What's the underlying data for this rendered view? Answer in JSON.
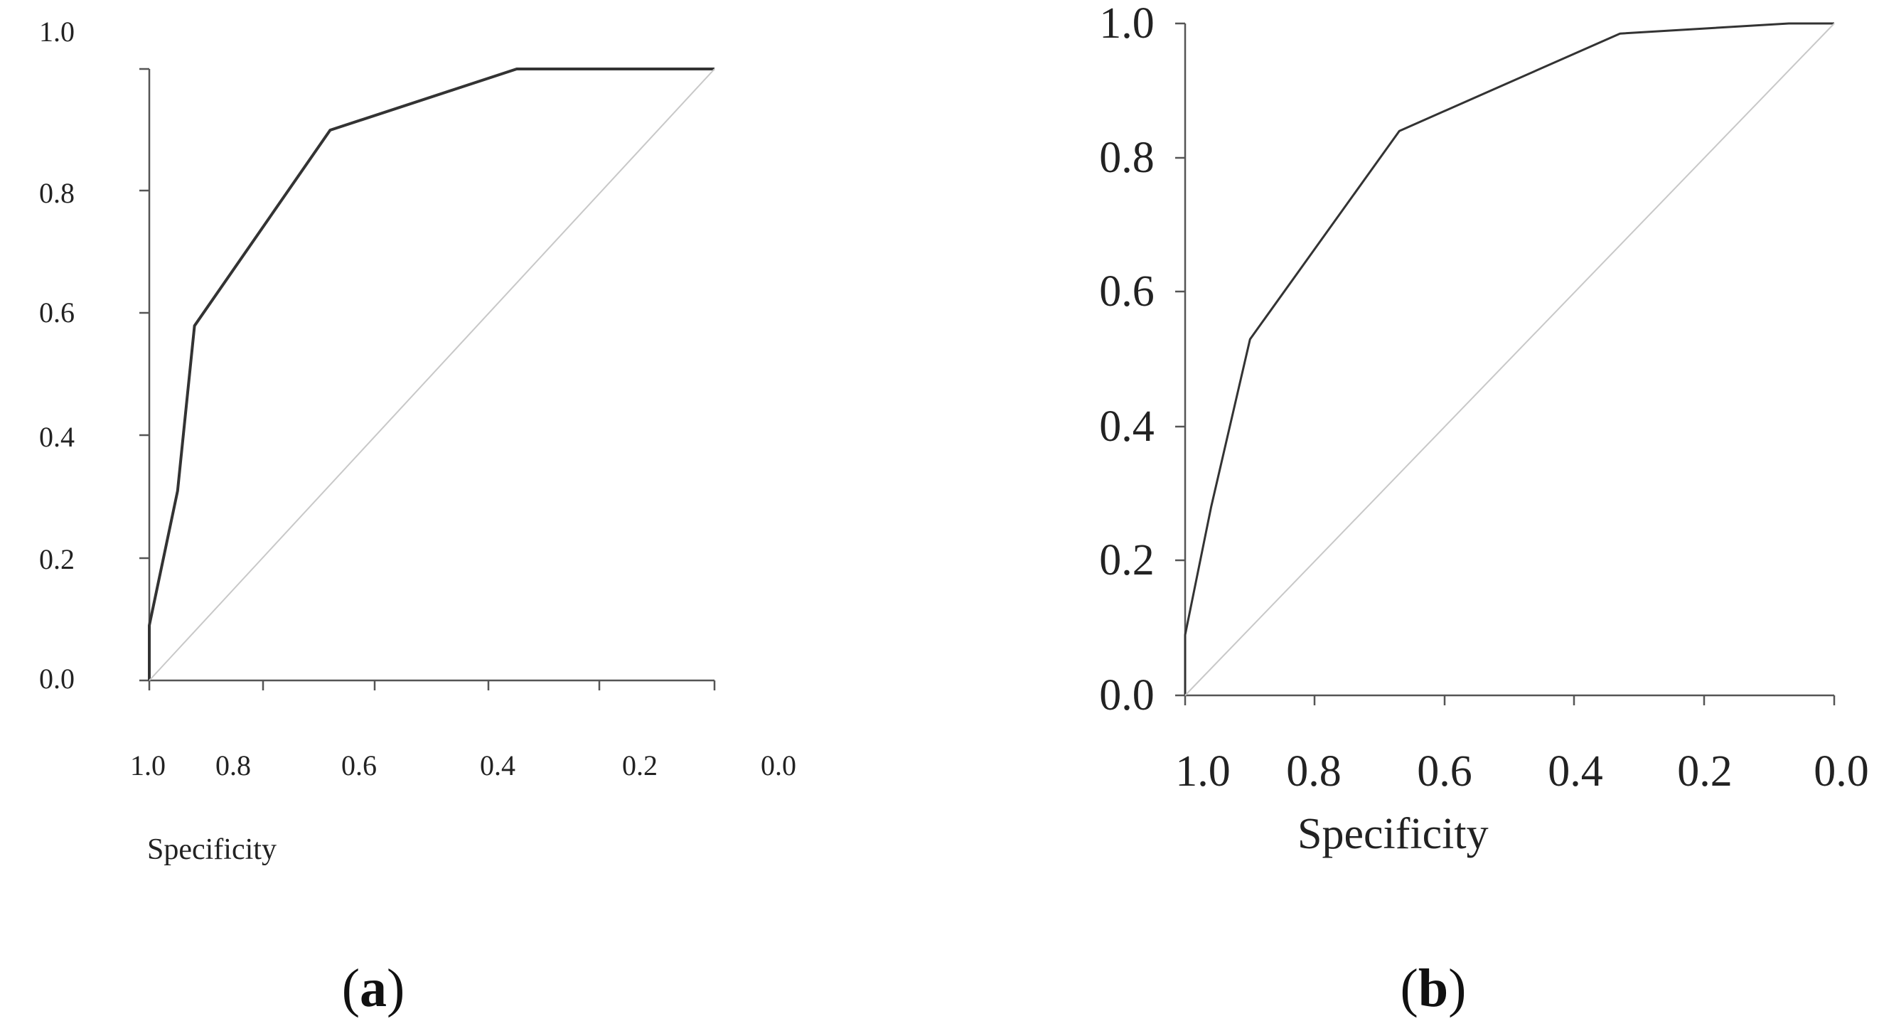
{
  "chart_data": [
    {
      "type": "line",
      "caption_letter": "a",
      "xlabel": "Specificity",
      "ylabel": "",
      "x_reversed": true,
      "xlim": [
        1.0,
        0.0
      ],
      "ylim": [
        0.0,
        1.0
      ],
      "x_ticks": [
        "1.0",
        "0.8",
        "0.6",
        "0.4",
        "0.2",
        "0.0"
      ],
      "y_ticks": [
        "0.0",
        "0.2",
        "0.4",
        "0.6",
        "0.8",
        "1.0"
      ],
      "grid": false,
      "legend": "none",
      "series": [
        {
          "role": "roc-curve",
          "color": "#333333",
          "points": [
            [
              1.0,
              0.0
            ],
            [
              1.0,
              0.09
            ],
            [
              0.95,
              0.31
            ],
            [
              0.92,
              0.58
            ],
            [
              0.68,
              0.9
            ],
            [
              0.35,
              1.0
            ],
            [
              0.0,
              1.0
            ]
          ]
        },
        {
          "role": "reference-diagonal",
          "color": "#c8c8c8",
          "points": [
            [
              1.0,
              0.0
            ],
            [
              0.0,
              1.0
            ]
          ]
        }
      ]
    },
    {
      "type": "line",
      "caption_letter": "b",
      "xlabel": "Specificity",
      "ylabel": "",
      "x_reversed": true,
      "xlim": [
        1.0,
        0.0
      ],
      "ylim": [
        0.0,
        1.0
      ],
      "x_ticks": [
        "1.0",
        "0.8",
        "0.6",
        "0.4",
        "0.2",
        "0.0"
      ],
      "y_ticks": [
        "0.0",
        "0.2",
        "0.4",
        "0.6",
        "0.8",
        "1.0"
      ],
      "grid": false,
      "legend": "none",
      "series": [
        {
          "role": "roc-curve",
          "color": "#333333",
          "points": [
            [
              1.0,
              0.0
            ],
            [
              1.0,
              0.09
            ],
            [
              0.96,
              0.28
            ],
            [
              0.9,
              0.53
            ],
            [
              0.67,
              0.84
            ],
            [
              0.33,
              0.985
            ],
            [
              0.07,
              1.0
            ],
            [
              0.0,
              1.0
            ]
          ]
        },
        {
          "role": "reference-diagonal",
          "color": "#c8c8c8",
          "points": [
            [
              1.0,
              0.0
            ],
            [
              0.0,
              1.0
            ]
          ]
        }
      ]
    }
  ]
}
